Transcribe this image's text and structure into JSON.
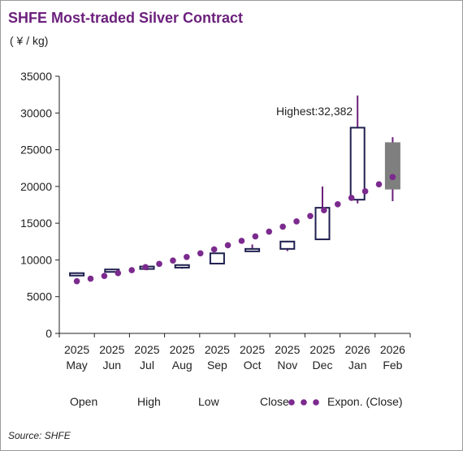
{
  "title": "SHFE Most-traded Silver Contract",
  "unit_label": "( ¥ / kg)",
  "source": "Source: SHFE",
  "annotation": "Highest:32,382",
  "legend": {
    "open": "Open",
    "high": "High",
    "low": "Low",
    "close": "Close",
    "trend": "Expon. (Close)"
  },
  "colors": {
    "title": "#6b1f7c",
    "candle": "#1f1f4f",
    "wick": "#6b1f7c",
    "dots": "#7b2a8e",
    "last_candle": "#7f7f7f"
  },
  "chart_data": {
    "type": "candlestick",
    "title": "SHFE Most-traded Silver Contract",
    "ylabel": "( ¥ / kg)",
    "ylim": [
      0,
      35000
    ],
    "yticks": [
      0,
      5000,
      10000,
      15000,
      20000,
      25000,
      30000,
      35000
    ],
    "ytick_labels": [
      "0",
      "5000",
      "10000",
      "15000",
      "20000",
      "25000",
      "30000",
      "35000"
    ],
    "categories": [
      [
        "2025",
        "May"
      ],
      [
        "2025",
        "Jun"
      ],
      [
        "2025",
        "Jul"
      ],
      [
        "2025",
        "Aug"
      ],
      [
        "2025",
        "Sep"
      ],
      [
        "2025",
        "Oct"
      ],
      [
        "2025",
        "Nov"
      ],
      [
        "2025",
        "Dec"
      ],
      [
        "2026",
        "Jan"
      ],
      [
        "2026",
        "Feb"
      ]
    ],
    "series": [
      {
        "name": "Open",
        "values": [
          8200,
          8500,
          8800,
          8950,
          9500,
          11300,
          11500,
          12800,
          18200,
          25900
        ]
      },
      {
        "name": "High",
        "values": [
          8300,
          8800,
          9200,
          9400,
          11000,
          12100,
          12600,
          20000,
          32382,
          26700
        ]
      },
      {
        "name": "Low",
        "values": [
          8000,
          8300,
          8600,
          8800,
          9400,
          11100,
          11200,
          12700,
          17700,
          18000
        ]
      },
      {
        "name": "Close",
        "values": [
          8100,
          8700,
          9100,
          9300,
          10900,
          11500,
          12500,
          17100,
          28000,
          19700
        ]
      }
    ],
    "trend": {
      "name": "Expon. (Close)",
      "type": "exponential",
      "values": [
        7100,
        7450,
        7820,
        8200,
        8600,
        9020,
        9460,
        9920,
        10400,
        10900,
        11440,
        12000,
        12600,
        13200,
        13850,
        14530,
        15240,
        15980,
        16760,
        17580,
        18440,
        19340,
        20290,
        21280
      ]
    },
    "annotation": {
      "text": "Highest:32,382",
      "category": 8,
      "value": 32382
    },
    "grid": false,
    "legend_position": "bottom"
  }
}
